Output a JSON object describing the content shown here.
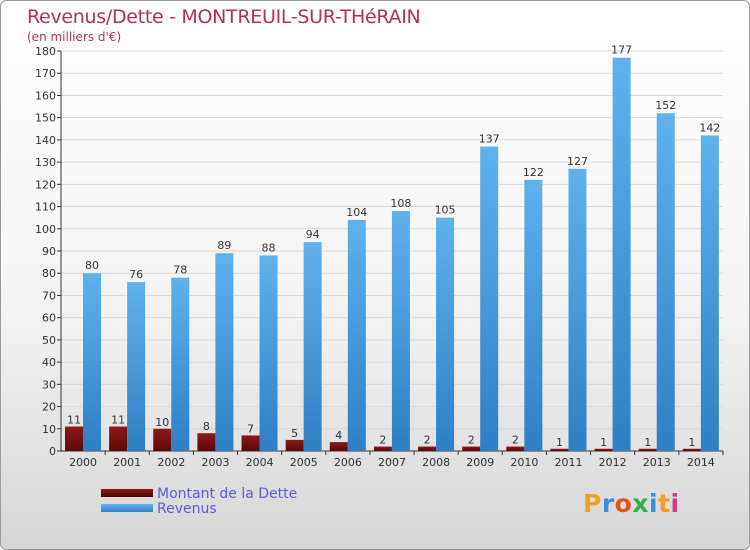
{
  "chart_data": {
    "type": "bar",
    "title": "Revenus/Dette - MONTREUIL-SUR-THéRAIN",
    "subtitle": "(en milliers d'€)",
    "categories": [
      "2000",
      "2001",
      "2002",
      "2003",
      "2004",
      "2005",
      "2006",
      "2007",
      "2008",
      "2009",
      "2010",
      "2011",
      "2012",
      "2013",
      "2014"
    ],
    "series": [
      {
        "name": "Montant de la Dette",
        "color": "#7a1010",
        "values": [
          11,
          11,
          10,
          8,
          7,
          5,
          4,
          2,
          2,
          2,
          2,
          1,
          1,
          1,
          1
        ]
      },
      {
        "name": "Revenus",
        "color": "#4aa3e4",
        "values": [
          80,
          76,
          78,
          89,
          88,
          94,
          104,
          108,
          105,
          137,
          122,
          127,
          177,
          152,
          142
        ]
      }
    ],
    "ylim": [
      0,
      180
    ],
    "yticks": [
      0,
      10,
      20,
      30,
      40,
      50,
      60,
      70,
      80,
      90,
      100,
      110,
      120,
      130,
      140,
      150,
      160,
      170,
      180
    ],
    "grid": true,
    "legend_position": "bottom-left"
  },
  "logo": {
    "letters": [
      "P",
      "r",
      "o",
      "x",
      "i",
      "t",
      "i"
    ],
    "colors": [
      "#f0a020",
      "#3a8fd8",
      "#e85020",
      "#30b040",
      "#3a8fd8",
      "#f0a020",
      "#d43a8a"
    ]
  }
}
